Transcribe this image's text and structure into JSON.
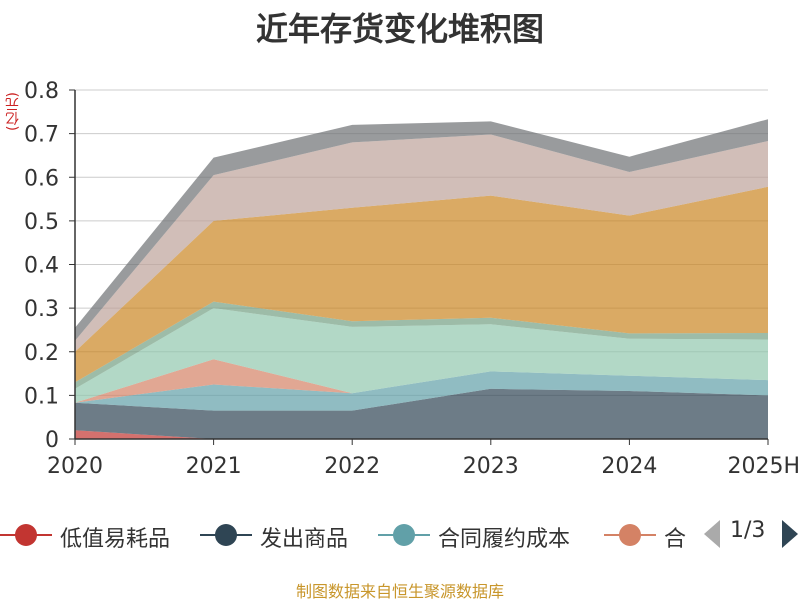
{
  "title": "近年存货变化堆积图",
  "source": "制图数据来自恒生聚源数据库",
  "pager": {
    "text": "1/3"
  },
  "chart_data": {
    "type": "area",
    "stacked": true,
    "unit": "(亿元)",
    "categories": [
      "2020",
      "2021",
      "2022",
      "2023",
      "2024",
      "2025H"
    ],
    "ylim": [
      0,
      0.8
    ],
    "yticks": [
      0,
      0.1,
      0.2,
      0.3,
      0.4,
      0.5,
      0.6,
      0.7,
      0.8
    ],
    "ytick_labels": [
      "0",
      "0.1",
      "0.2",
      "0.3",
      "0.4",
      "0.5",
      "0.6",
      "0.7",
      "0.8"
    ],
    "grid": true,
    "legend_position": "bottom",
    "series": [
      {
        "name": "低值易耗品",
        "color": "#c23531",
        "values": [
          0.02,
          0.0,
          0.0,
          0.0,
          0.0,
          0.0
        ]
      },
      {
        "name": "发出商品",
        "color": "#2f4554",
        "values": [
          0.063,
          0.065,
          0.065,
          0.115,
          0.11,
          0.1
        ]
      },
      {
        "name": "合同履约成本",
        "color": "#61a0a8",
        "values": [
          0.0,
          0.06,
          0.04,
          0.04,
          0.035,
          0.035
        ]
      },
      {
        "name": "合",
        "color": "#d48265",
        "values": [
          0.0,
          0.058,
          0.0,
          0.0,
          0.0,
          0.0
        ]
      },
      {
        "color": "#91c7ae",
        "values": [
          0.032,
          0.117,
          0.152,
          0.108,
          0.085,
          0.093
        ]
      },
      {
        "color": "#749f83",
        "values": [
          0.015,
          0.015,
          0.013,
          0.015,
          0.012,
          0.015
        ]
      },
      {
        "color": "#ca8622",
        "values": [
          0.07,
          0.185,
          0.26,
          0.28,
          0.27,
          0.335
        ]
      },
      {
        "color": "#bda29a",
        "values": [
          0.025,
          0.105,
          0.15,
          0.14,
          0.1,
          0.105
        ]
      },
      {
        "color": "#6e7074",
        "values": [
          0.03,
          0.04,
          0.04,
          0.03,
          0.035,
          0.05
        ]
      }
    ],
    "legend_visible": [
      "低值易耗品",
      "发出商品",
      "合同履约成本",
      "合"
    ]
  }
}
